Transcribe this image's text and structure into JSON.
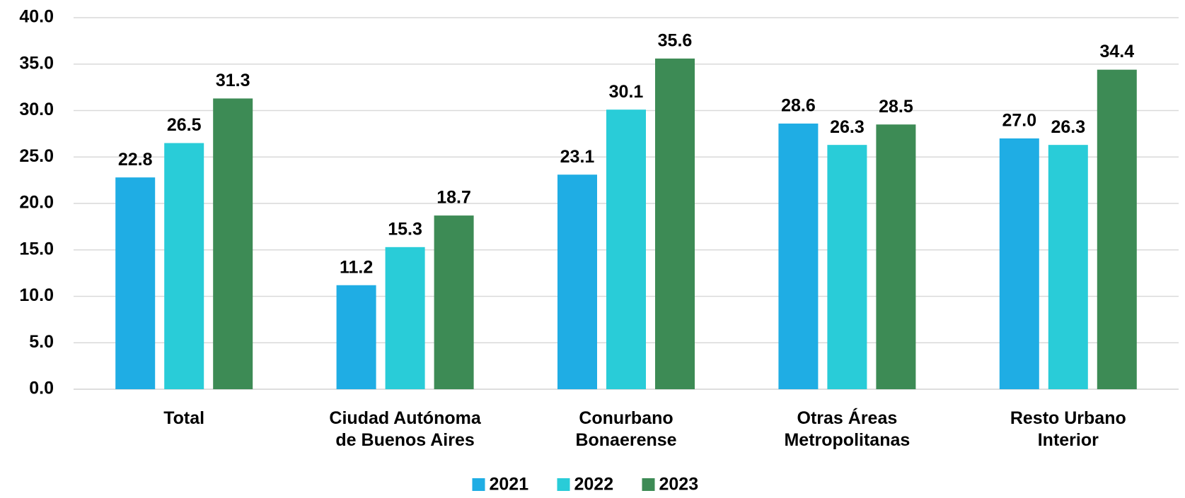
{
  "chart_data": {
    "type": "bar",
    "categories": [
      "Total",
      "Ciudad Autónoma\nde Buenos Aires",
      "Conurbano\nBonaerense",
      "Otras Áreas\nMetropolitanas",
      "Resto Urbano\nInterior"
    ],
    "series": [
      {
        "name": "2021",
        "color": "#1fade4",
        "values": [
          22.8,
          11.2,
          23.1,
          28.6,
          27.0
        ],
        "value_labels": [
          "22.8",
          "11.2",
          "23.1",
          "28.6",
          "27.0"
        ]
      },
      {
        "name": "2022",
        "color": "#29ccd8",
        "values": [
          26.5,
          15.3,
          30.1,
          26.3,
          26.3
        ],
        "value_labels": [
          "26.5",
          "15.3",
          "30.1",
          "26.3",
          "26.3"
        ]
      },
      {
        "name": "2023",
        "color": "#3d8b55",
        "values": [
          31.3,
          18.7,
          35.6,
          28.5,
          34.4
        ],
        "value_labels": [
          "31.3",
          "18.7",
          "35.6",
          "28.5",
          "34.4"
        ]
      }
    ],
    "ylim": [
      0,
      40
    ],
    "yticks": [
      {
        "value": 0,
        "label": "0.0"
      },
      {
        "value": 5,
        "label": "5.0"
      },
      {
        "value": 10,
        "label": "10.0"
      },
      {
        "value": 15,
        "label": "15.0"
      },
      {
        "value": 20,
        "label": "20.0"
      },
      {
        "value": 25,
        "label": "25.0"
      },
      {
        "value": 30,
        "label": "30.0"
      },
      {
        "value": 35,
        "label": "35.0"
      },
      {
        "value": 40,
        "label": "40.0"
      }
    ],
    "grid": true,
    "legend": "bottom"
  }
}
